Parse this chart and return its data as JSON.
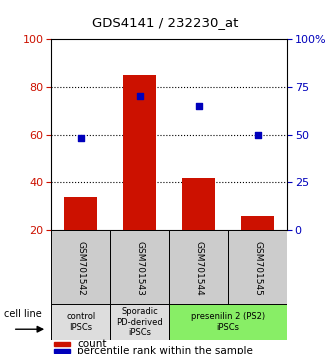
{
  "title": "GDS4141 / 232230_at",
  "samples": [
    "GSM701542",
    "GSM701543",
    "GSM701544",
    "GSM701545"
  ],
  "bar_values": [
    34,
    85,
    42,
    26
  ],
  "percentile_values": [
    48,
    70,
    65,
    50
  ],
  "bar_color": "#cc1100",
  "percentile_color": "#0000bb",
  "ylim_left": [
    20,
    100
  ],
  "ylim_right": [
    0,
    100
  ],
  "yticks_left": [
    20,
    40,
    60,
    80,
    100
  ],
  "yticks_right": [
    0,
    25,
    50,
    75,
    100
  ],
  "yticklabels_right": [
    "0",
    "25",
    "50",
    "75",
    "100%"
  ],
  "grid_yticks": [
    40,
    60,
    80
  ],
  "cell_line_groups": [
    {
      "label": "control\nIPSCs",
      "samples": [
        0
      ],
      "color": "#dddddd"
    },
    {
      "label": "Sporadic\nPD-derived\niPSCs",
      "samples": [
        1
      ],
      "color": "#dddddd"
    },
    {
      "label": "presenilin 2 (PS2)\niPSCs",
      "samples": [
        2,
        3
      ],
      "color": "#88ee66"
    }
  ],
  "legend_items": [
    {
      "color": "#cc1100",
      "label": "count"
    },
    {
      "color": "#0000bb",
      "label": "percentile rank within the sample"
    }
  ],
  "cell_line_label": "cell line",
  "background_color": "#ffffff",
  "bar_bottom": 20,
  "sample_box_color": "#cccccc"
}
